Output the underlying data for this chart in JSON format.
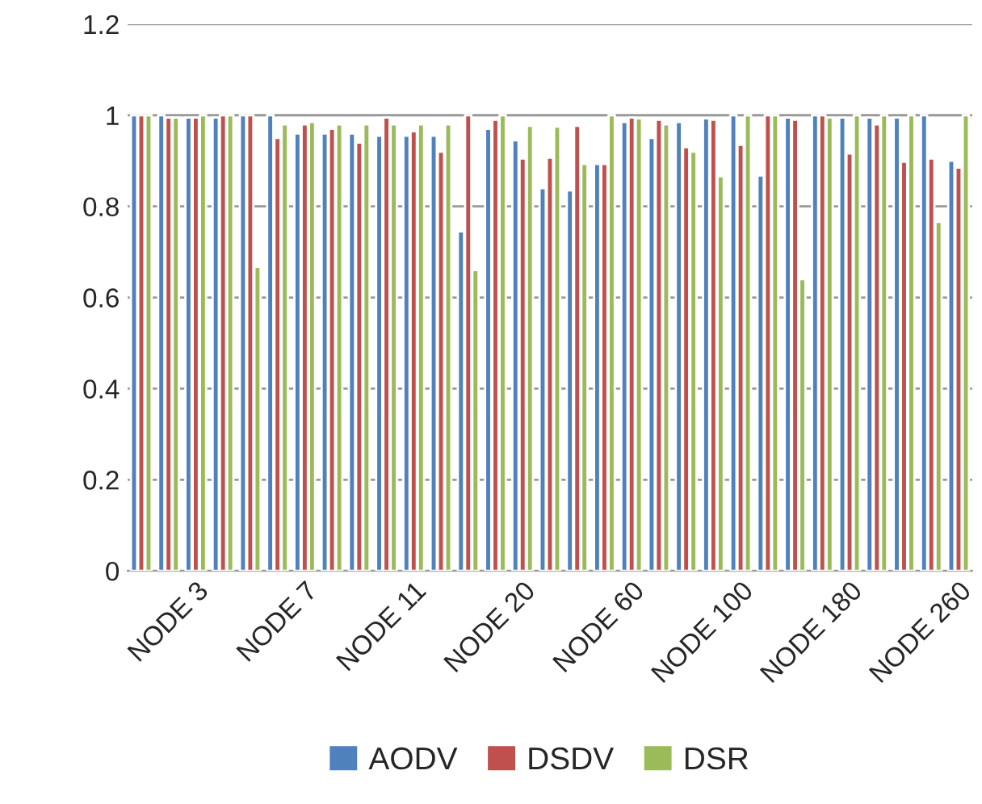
{
  "chart_data": {
    "type": "bar",
    "categories": [
      null,
      null,
      "NODE 3",
      null,
      null,
      null,
      "NODE 7",
      null,
      null,
      null,
      "NODE 11",
      null,
      null,
      null,
      "NODE 20",
      null,
      null,
      null,
      "NODE 60",
      null,
      null,
      null,
      "NODE 100",
      null,
      null,
      null,
      "NODE 180",
      null,
      null,
      null,
      "NODE 260"
    ],
    "series": [
      {
        "name": "AODV",
        "color": "#4f81bd",
        "values": [
          1.0,
          1.0,
          0.995,
          0.995,
          1.0,
          1.0,
          0.96,
          0.96,
          0.96,
          0.955,
          0.955,
          0.955,
          0.745,
          0.97,
          0.945,
          0.84,
          0.835,
          0.893,
          0.985,
          0.95,
          0.985,
          0.993,
          1.0,
          0.868,
          0.995,
          1.0,
          0.995,
          0.995,
          0.995,
          1.0,
          0.9
        ]
      },
      {
        "name": "DSDV",
        "color": "#c0504d",
        "values": [
          1.0,
          0.995,
          0.995,
          1.0,
          1.0,
          0.95,
          0.98,
          0.97,
          0.94,
          0.995,
          0.965,
          0.92,
          1.0,
          0.99,
          0.905,
          0.907,
          0.977,
          0.893,
          0.995,
          0.99,
          0.93,
          0.99,
          0.935,
          1.0,
          0.99,
          1.0,
          0.916,
          0.98,
          0.898,
          0.905,
          0.885
        ]
      },
      {
        "name": "DSR",
        "color": "#9bbb59",
        "values": [
          1.0,
          0.995,
          1.0,
          1.0,
          0.667,
          0.98,
          0.985,
          0.98,
          0.98,
          0.98,
          0.98,
          0.98,
          0.66,
          1.0,
          0.977,
          0.975,
          0.893,
          1.0,
          0.993,
          0.98,
          0.92,
          0.866,
          1.0,
          1.0,
          0.64,
          0.995,
          1.0,
          1.0,
          1.0,
          0.766,
          1.0
        ]
      }
    ],
    "ylim": [
      0,
      1.2
    ],
    "yticks": [
      0,
      0.2,
      0.4,
      0.6,
      0.8,
      1,
      1.2
    ],
    "grid": "y",
    "legend": "bottom"
  }
}
